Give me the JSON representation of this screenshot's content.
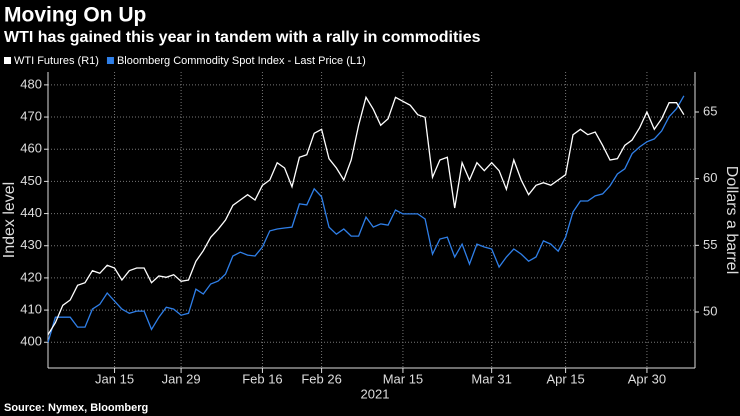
{
  "chart_data": {
    "type": "line",
    "title": "Moving On Up",
    "subtitle": "WTI has gained this year in tandem with a rally in commodities",
    "source": "Source: Nymex, Bloomberg",
    "xlabel": "2021",
    "ylabel": "Index level",
    "y2label": "Dollars a barrel",
    "categories": [
      null,
      null,
      null,
      null,
      null,
      null,
      null,
      null,
      null,
      "Jan 15",
      null,
      null,
      null,
      null,
      null,
      null,
      null,
      null,
      "Jan 29",
      null,
      null,
      null,
      null,
      null,
      null,
      null,
      null,
      null,
      null,
      "Feb 16",
      null,
      null,
      null,
      null,
      null,
      null,
      null,
      "Feb 26",
      null,
      null,
      null,
      null,
      null,
      null,
      null,
      null,
      null,
      null,
      "Mar 15",
      null,
      null,
      null,
      null,
      null,
      null,
      null,
      null,
      null,
      null,
      null,
      "Mar 31",
      null,
      null,
      null,
      null,
      null,
      null,
      null,
      null,
      null,
      "Apr 15",
      null,
      null,
      null,
      null,
      null,
      null,
      null,
      null,
      null,
      null,
      "Apr 30",
      null,
      null,
      null,
      null,
      null
    ],
    "series": [
      {
        "name": "WTI Futures (R1)",
        "color": "#ffffff",
        "axis": "y2",
        "values": [
          48.3,
          49.2,
          50.5,
          50.9,
          52.0,
          52.2,
          53.1,
          52.9,
          53.5,
          53.3,
          52.4,
          53.1,
          53.3,
          53.3,
          52.2,
          52.7,
          52.6,
          52.8,
          52.3,
          52.4,
          53.8,
          54.6,
          55.6,
          56.2,
          56.9,
          58.0,
          58.4,
          58.8,
          58.4,
          59.5,
          59.9,
          61.2,
          60.8,
          59.4,
          61.6,
          61.8,
          63.4,
          63.7,
          61.5,
          60.8,
          59.9,
          61.4,
          64.0,
          66.1,
          65.2,
          64.0,
          64.5,
          66.1,
          65.8,
          65.5,
          64.8,
          64.6,
          60.1,
          61.4,
          61.6,
          57.8,
          61.2,
          59.9,
          61.2,
          60.6,
          61.2,
          60.6,
          59.2,
          61.4,
          59.9,
          58.8,
          59.5,
          59.7,
          59.5,
          59.9,
          60.3,
          63.3,
          63.7,
          63.3,
          63.5,
          62.5,
          61.4,
          61.5,
          62.5,
          62.9,
          63.8,
          65.0,
          63.7,
          64.5,
          65.7,
          65.7,
          64.8
        ]
      },
      {
        "name": "Bloomberg Commodity Spot Index - Last Price (L1)",
        "color": "#2f7fe8",
        "values": [
          400,
          407.8,
          407.8,
          407.8,
          404.7,
          404.7,
          410.3,
          411.8,
          415.3,
          412.8,
          410.3,
          409.0,
          409.7,
          409.7,
          404.0,
          407.8,
          410.9,
          410.3,
          408.4,
          409.0,
          416.5,
          415.0,
          418.1,
          419.0,
          421.2,
          426.8,
          428.0,
          427.1,
          426.8,
          429.6,
          434.6,
          435.2,
          435.5,
          435.8,
          443.0,
          442.7,
          447.7,
          445.2,
          435.8,
          433.6,
          435.2,
          433.0,
          433.0,
          438.9,
          435.8,
          436.8,
          436.4,
          441.1,
          439.9,
          439.9,
          439.9,
          438.3,
          427.4,
          432.1,
          432.7,
          426.5,
          430.5,
          424.3,
          430.5,
          429.6,
          429.0,
          423.4,
          426.5,
          429.0,
          427.4,
          425.2,
          426.5,
          431.5,
          430.5,
          428.3,
          432.7,
          440.5,
          443.9,
          443.9,
          445.5,
          446.1,
          448.6,
          452.3,
          453.9,
          458.6,
          460.7,
          462.3,
          463.2,
          465.7,
          470.1,
          472.6,
          476.6
        ]
      }
    ],
    "ylim": [
      392,
      484
    ],
    "yticks": [
      400,
      410,
      420,
      430,
      440,
      450,
      460,
      470,
      480
    ],
    "y2lim": [
      45.8,
      68
    ],
    "y2ticks": [
      50,
      55,
      60,
      65
    ],
    "grid": true
  }
}
